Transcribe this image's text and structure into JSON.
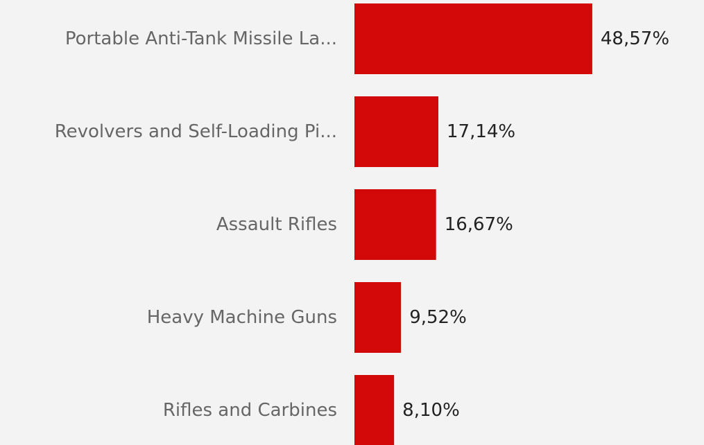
{
  "colors": {
    "background": "#f3f3f3",
    "bar": "#d30808",
    "category_text": "#666666",
    "value_text": "#222222"
  },
  "chart_data": {
    "type": "bar",
    "orientation": "horizontal",
    "title": "",
    "xlabel": "",
    "ylabel": "",
    "categories": [
      "Portable Anti-Tank Missile La...",
      "Revolvers and Self-Loading Pi...",
      "Assault Rifles",
      "Heavy Machine Guns",
      "Rifles and Carbines"
    ],
    "values": [
      48.57,
      17.14,
      16.67,
      9.52,
      8.1
    ],
    "value_labels": [
      "48,57%",
      "17,14%",
      "16,67%",
      "9,52%",
      "8,10%"
    ],
    "grid": false,
    "legend": "none"
  }
}
